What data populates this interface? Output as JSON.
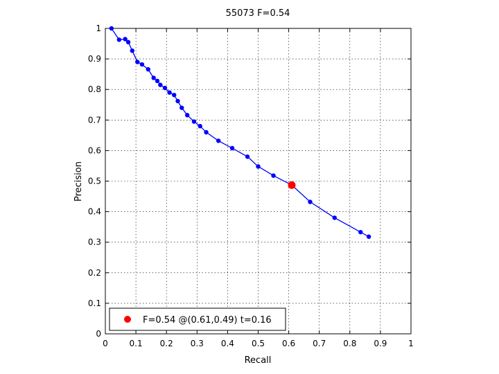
{
  "chart_data": {
    "type": "line",
    "title": "55073 F=0.54",
    "xlabel": "Recall",
    "ylabel": "Precision",
    "xlim": [
      0,
      1
    ],
    "ylim": [
      0,
      1
    ],
    "x_ticks": [
      "0",
      "0.1",
      "0.2",
      "0.3",
      "0.4",
      "0.5",
      "0.6",
      "0.7",
      "0.8",
      "0.9",
      "1"
    ],
    "y_ticks": [
      "0",
      "0.1",
      "0.2",
      "0.3",
      "0.4",
      "0.5",
      "0.6",
      "0.7",
      "0.8",
      "0.9",
      "1"
    ],
    "grid": true,
    "legend_position": "bottom-left",
    "series": [
      {
        "color": "#0000ff",
        "x": [
          0.02,
          0.045,
          0.065,
          0.075,
          0.088,
          0.105,
          0.12,
          0.14,
          0.158,
          0.17,
          0.18,
          0.195,
          0.21,
          0.225,
          0.237,
          0.25,
          0.268,
          0.29,
          0.31,
          0.33,
          0.37,
          0.415,
          0.465,
          0.5,
          0.55,
          0.61,
          0.67,
          0.75,
          0.835,
          0.862
        ],
        "y": [
          1.0,
          0.963,
          0.965,
          0.955,
          0.927,
          0.89,
          0.882,
          0.866,
          0.838,
          0.828,
          0.815,
          0.805,
          0.79,
          0.782,
          0.762,
          0.74,
          0.716,
          0.695,
          0.68,
          0.66,
          0.632,
          0.608,
          0.58,
          0.548,
          0.518,
          0.487,
          0.432,
          0.38,
          0.333,
          0.318
        ]
      }
    ],
    "highlight_point": {
      "x": 0.61,
      "y": 0.487,
      "color": "#ff0000",
      "label": "F=0.54 @(0.61,0.49) t=0.16"
    }
  }
}
